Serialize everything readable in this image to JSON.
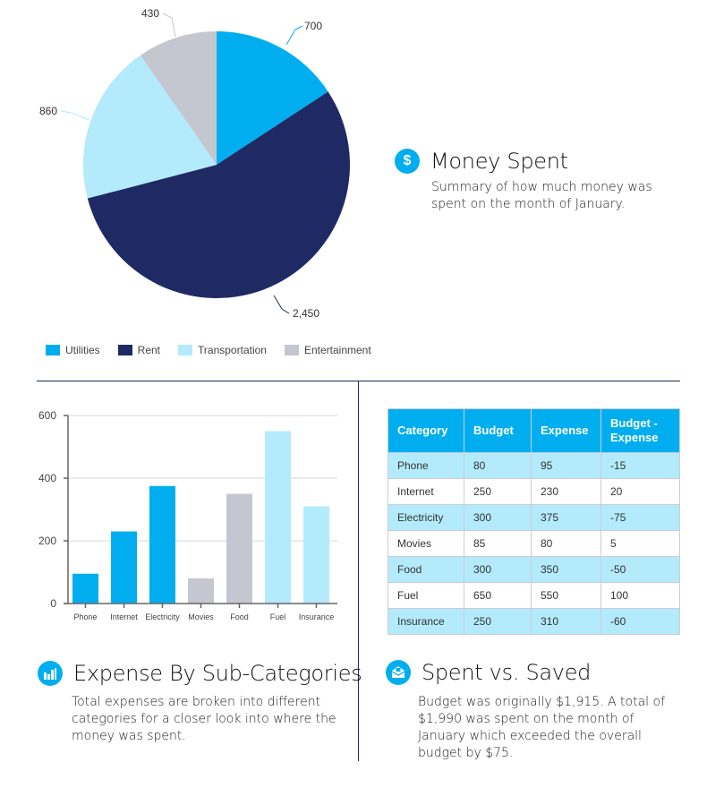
{
  "colors": {
    "utilities": "#00aeef",
    "rent": "#1f2a64",
    "transportation": "#b3eafc",
    "entertainment": "#c5c7d0",
    "accent": "#00aeef",
    "divider": "#1f2a5c"
  },
  "money_spent": {
    "icon": "dollar-icon",
    "icon_glyph": "$",
    "title": "Money Spent",
    "description": "Summary of how much money was spent on the month of January."
  },
  "expense_sub": {
    "icon": "bar-chart-icon",
    "title": "Expense By Sub-Categories",
    "description": "Total expenses are broken into different categories for a closer look into where the money was spent."
  },
  "spent_saved": {
    "icon": "envelope-icon",
    "title": "Spent vs. Saved",
    "description": "Budget was originally $1,915. A total of $1,990 was spent on the month of January which exceeded the overall budget by $75."
  },
  "table": {
    "headers": [
      "Category",
      "Budget",
      "Expense",
      "Budget - Expense"
    ],
    "rows": [
      [
        "Phone",
        "80",
        "95",
        "-15"
      ],
      [
        "Internet",
        "250",
        "230",
        "20"
      ],
      [
        "Electricity",
        "300",
        "375",
        "-75"
      ],
      [
        "Movies",
        "85",
        "80",
        "5"
      ],
      [
        "Food",
        "300",
        "350",
        "-50"
      ],
      [
        "Fuel",
        "650",
        "550",
        "100"
      ],
      [
        "Insurance",
        "250",
        "310",
        "-60"
      ]
    ]
  },
  "chart_data": [
    {
      "type": "pie",
      "title": "Money Spent",
      "categories": [
        "Utilities",
        "Rent",
        "Transportation",
        "Entertainment"
      ],
      "values": [
        700,
        2450,
        860,
        430
      ],
      "data_labels": [
        "700",
        "2,450",
        "860",
        "430"
      ],
      "colors": [
        "#00aeef",
        "#1f2a64",
        "#b3eafc",
        "#c5c7d0"
      ],
      "start_angle": "12 o'clock, clockwise",
      "legend": "bottom"
    },
    {
      "type": "bar",
      "title": "Expense By Sub-Categories",
      "categories": [
        "Phone",
        "Internet",
        "Electricity",
        "Movies",
        "Food",
        "Fuel",
        "Insurance"
      ],
      "values": [
        95,
        230,
        375,
        80,
        350,
        550,
        310
      ],
      "colors": [
        "#00aeef",
        "#00aeef",
        "#00aeef",
        "#c5c7d0",
        "#c5c7d0",
        "#b3eafc",
        "#b3eafc"
      ],
      "ylim": [
        0,
        600
      ],
      "yticks": [
        0,
        200,
        400,
        600
      ],
      "xlabel": "",
      "ylabel": "",
      "grid": true
    }
  ]
}
